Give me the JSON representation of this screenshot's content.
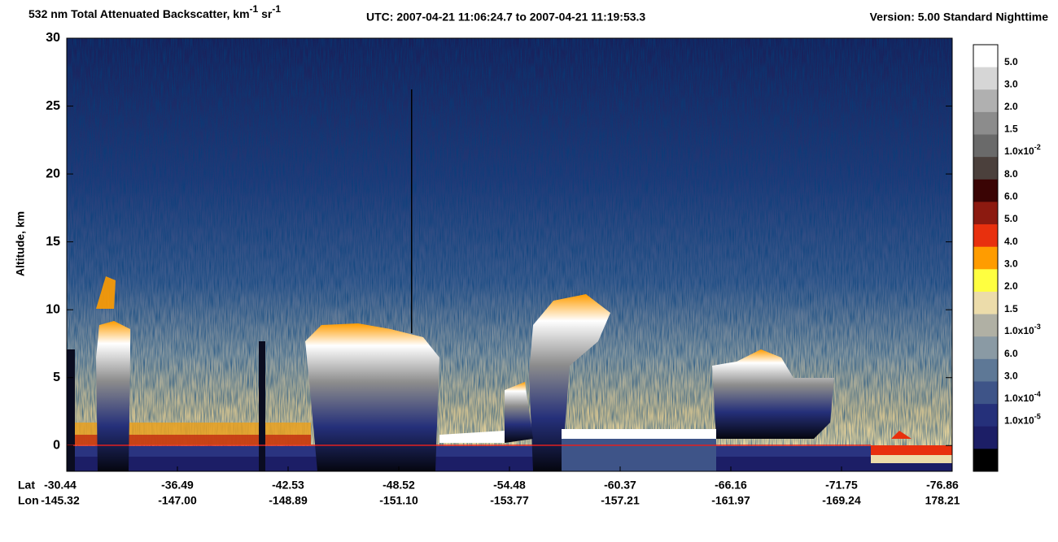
{
  "chart_data": {
    "type": "heatmap",
    "title_parts": [
      "532 nm Total Attenuated Backscatter, km",
      "-1",
      " sr",
      "-1"
    ],
    "time_range": "UTC:  2007-04-21 11:06:24.7  to  2007-04-21 11:19:53.3",
    "version": "Version: 5.00  Standard  Nighttime",
    "ylabel": "Altitude, km",
    "ylim": [
      -1.9,
      30
    ],
    "yticks": [
      0,
      5,
      10,
      15,
      20,
      25,
      30
    ],
    "lat_label": "Lat",
    "lon_label": "Lon",
    "x_ticks": [
      {
        "lat": "-30.44",
        "lon": "-145.32"
      },
      {
        "lat": "-36.49",
        "lon": "-147.00"
      },
      {
        "lat": "-42.53",
        "lon": "-148.89"
      },
      {
        "lat": "-48.52",
        "lon": "-151.10"
      },
      {
        "lat": "-54.48",
        "lon": "-153.77"
      },
      {
        "lat": "-60.37",
        "lon": "-157.21"
      },
      {
        "lat": "-66.16",
        "lon": "-161.97"
      },
      {
        "lat": "-71.75",
        "lon": "-169.24"
      },
      {
        "lat": "-76.86",
        "lon": "178.21"
      }
    ],
    "colorbar_colors": [
      "#ffffff",
      "#d6d6d6",
      "#b0b0b0",
      "#8c8c8c",
      "#6a6a6a",
      "#4b403c",
      "#3a0404",
      "#8c1a10",
      "#e8300e",
      "#ff9c00",
      "#ffff40",
      "#ecdcaa",
      "#b0b0a4",
      "#8a9aa4",
      "#5e7896",
      "#3e5488",
      "#25307a",
      "#1c1e66",
      "#000000"
    ],
    "colorbar_labels": [
      "5.0",
      "3.0",
      "2.0",
      "1.5",
      {
        "base": "1.0x10",
        "exponent": "-2"
      },
      "8.0",
      "6.0",
      "5.0",
      "4.0",
      "3.0",
      "2.0",
      "1.5",
      {
        "base": "1.0x10",
        "exponent": "-3"
      },
      "6.0",
      "3.0",
      {
        "base": "1.0x10",
        "exponent": "-4"
      },
      {
        "base": "1.0x10",
        "exponent": "-5"
      }
    ]
  }
}
